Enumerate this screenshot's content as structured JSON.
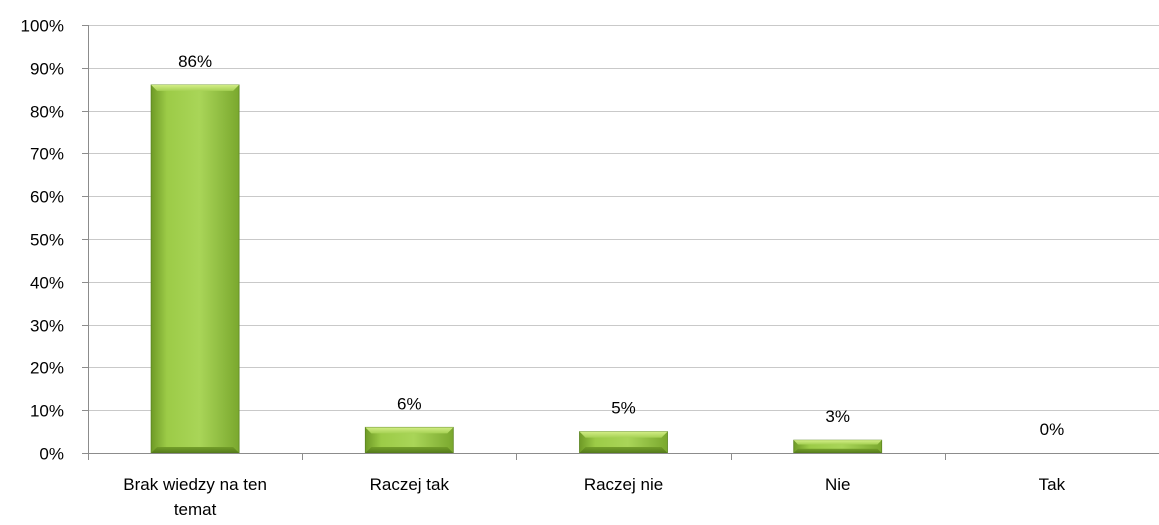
{
  "chart_data": {
    "type": "bar",
    "title": "",
    "xlabel": "",
    "ylabel": "",
    "categories": [
      [
        "Brak wiedzy na ten",
        "temat"
      ],
      [
        "Raczej tak"
      ],
      [
        "Raczej nie"
      ],
      [
        "Nie"
      ],
      [
        "Tak"
      ]
    ],
    "values": [
      86,
      6,
      5,
      3,
      0
    ],
    "value_labels": [
      "86%",
      "6%",
      "5%",
      "3%",
      "0%"
    ],
    "ylim": [
      0,
      100
    ],
    "yticks": [
      0,
      10,
      20,
      30,
      40,
      50,
      60,
      70,
      80,
      90,
      100
    ],
    "ytick_labels": [
      "0%",
      "10%",
      "20%",
      "30%",
      "40%",
      "50%",
      "60%",
      "70%",
      "80%",
      "90%",
      "100%"
    ],
    "grid": true,
    "legend": "none",
    "bar_color": "#8dbf3a",
    "bar_color_light": "#b4dc62",
    "bar_color_dark": "#5e8a1f",
    "grid_color": "#c9c9c9",
    "axis_color": "#8c8c8c"
  }
}
